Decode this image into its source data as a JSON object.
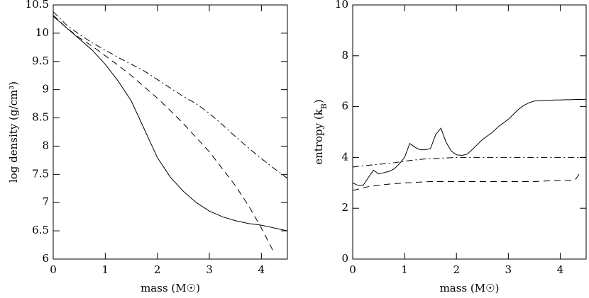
{
  "chart_data": [
    {
      "type": "line",
      "xlabel": "mass (M☉)",
      "ylabel": "log density (g/cm³)",
      "x": [
        0,
        0.25,
        0.5,
        0.75,
        1,
        1.25,
        1.5,
        1.75,
        2,
        2.25,
        2.5,
        2.75,
        3,
        3.25,
        3.5,
        3.75,
        4,
        4.25,
        4.5
      ],
      "xlim": [
        0,
        4.5
      ],
      "xticks": [
        0,
        1,
        2,
        3,
        4
      ],
      "ylim": [
        6,
        10.5
      ],
      "yticks": [
        6,
        6.5,
        7,
        7.5,
        8,
        8.5,
        9,
        9.5,
        10,
        10.5
      ],
      "series": [
        {
          "color": "#000000",
          "dash": "solid",
          "values": [
            10.3,
            10.1,
            9.9,
            9.7,
            9.45,
            9.15,
            8.8,
            8.3,
            7.8,
            7.45,
            7.2,
            7.0,
            6.85,
            6.75,
            6.68,
            6.63,
            6.6,
            6.55,
            6.5
          ]
        },
        {
          "color": "#000000",
          "dash": "dashed",
          "values": [
            10.32,
            10.1,
            9.92,
            9.77,
            9.6,
            9.43,
            9.25,
            9.05,
            8.85,
            8.63,
            8.4,
            8.15,
            7.9,
            7.6,
            7.3,
            6.95,
            6.55,
            6.1,
            null
          ]
        },
        {
          "color": "#000000",
          "dash": "dashdot",
          "values": [
            10.38,
            10.15,
            9.98,
            9.83,
            9.7,
            9.57,
            9.45,
            9.33,
            9.18,
            9.03,
            8.88,
            8.75,
            8.58,
            8.38,
            8.17,
            7.97,
            7.78,
            7.6,
            7.43
          ]
        }
      ]
    },
    {
      "type": "line",
      "xlabel": "mass (M☉)",
      "ylabel": [
        "entropy (k",
        "B",
        ")"
      ],
      "x": [
        0,
        0.1,
        0.2,
        0.3,
        0.4,
        0.5,
        0.6,
        0.7,
        0.8,
        0.9,
        1,
        1.1,
        1.2,
        1.3,
        1.4,
        1.5,
        1.6,
        1.7,
        1.8,
        1.9,
        2,
        2.1,
        2.2,
        2.3,
        2.4,
        2.5,
        2.6,
        2.7,
        2.8,
        2.9,
        3,
        3.1,
        3.2,
        3.3,
        3.4,
        3.5,
        3.6,
        3.7,
        3.8,
        3.9,
        4,
        4.1,
        4.2,
        4.3,
        4.4,
        4.5
      ],
      "xlim": [
        0,
        4.5
      ],
      "xticks": [
        0,
        1,
        2,
        3,
        4
      ],
      "ylim": [
        0,
        10
      ],
      "yticks": [
        0,
        2,
        4,
        6,
        8,
        10
      ],
      "series": [
        {
          "color": "#000000",
          "dash": "solid",
          "values": [
            3.0,
            2.9,
            2.9,
            3.2,
            3.5,
            3.35,
            3.4,
            3.45,
            3.55,
            3.75,
            4.0,
            4.55,
            4.4,
            4.3,
            4.3,
            4.35,
            4.9,
            5.15,
            4.6,
            4.25,
            4.1,
            4.08,
            4.12,
            4.3,
            4.5,
            4.7,
            4.85,
            5.0,
            5.2,
            5.35,
            5.5,
            5.7,
            5.9,
            6.05,
            6.15,
            6.22,
            6.23,
            6.24,
            6.25,
            6.26,
            6.26,
            6.27,
            6.27,
            6.28,
            6.28,
            6.29
          ]
        },
        {
          "color": "#000000",
          "dash": "dashed",
          "values": [
            2.7,
            2.75,
            2.8,
            2.85,
            2.88,
            2.9,
            2.93,
            2.95,
            2.97,
            2.98,
            3.0,
            3.0,
            3.02,
            3.03,
            3.04,
            3.05,
            3.05,
            3.05,
            3.05,
            3.05,
            3.05,
            3.05,
            3.05,
            3.05,
            3.05,
            3.05,
            3.05,
            3.05,
            3.05,
            3.05,
            3.05,
            3.05,
            3.05,
            3.05,
            3.05,
            3.05,
            3.06,
            3.07,
            3.08,
            3.09,
            3.1,
            3.1,
            3.1,
            3.15,
            3.45,
            null
          ]
        },
        {
          "color": "#000000",
          "dash": "dashdot",
          "values": [
            3.62,
            3.65,
            3.67,
            3.69,
            3.71,
            3.73,
            3.75,
            3.77,
            3.79,
            3.82,
            3.85,
            3.88,
            3.9,
            3.92,
            3.94,
            3.95,
            3.96,
            3.97,
            3.98,
            3.99,
            4.0,
            4.0,
            4.0,
            4.0,
            4.0,
            4.0,
            4.0,
            4.0,
            4.0,
            4.0,
            4.0,
            4.0,
            4.0,
            4.0,
            4.0,
            4.0,
            4.0,
            4.0,
            4.0,
            4.0,
            4.0,
            4.0,
            4.0,
            4.0,
            4.0,
            4.0
          ]
        }
      ]
    }
  ]
}
